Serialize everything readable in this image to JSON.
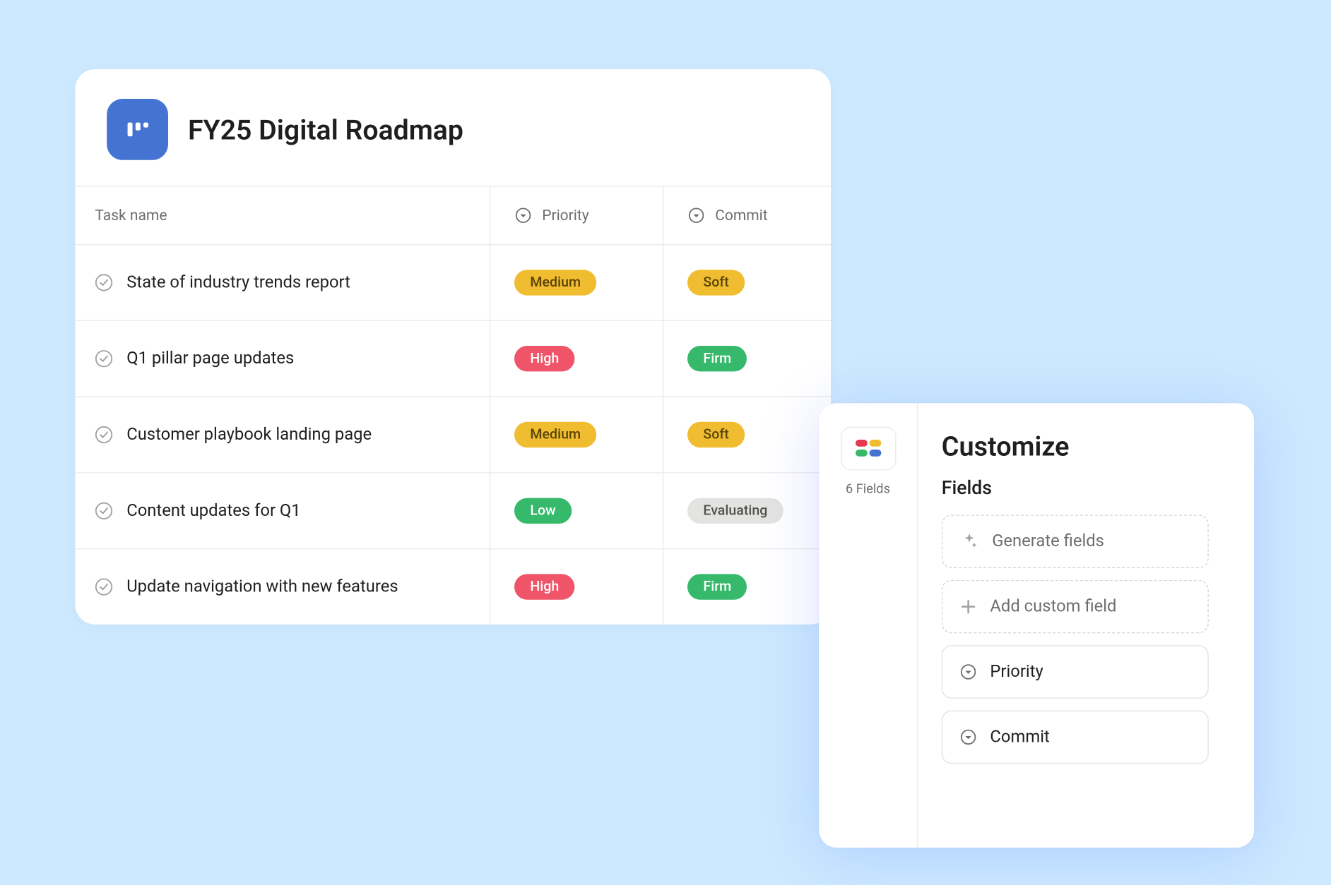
{
  "page_background": "#cce9ff",
  "project": {
    "icon_bg": "#4573d2",
    "title": "FY25 Digital Roadmap"
  },
  "columns": {
    "task_name": "Task name",
    "priority": "Priority",
    "commit": "Commit"
  },
  "pill_styles": {
    "Medium": {
      "bg": "#f1bd30",
      "fg": "#5a4305"
    },
    "High": {
      "bg": "#ef5468",
      "fg": "#ffffff"
    },
    "Low": {
      "bg": "#37b96c",
      "fg": "#ffffff"
    },
    "Soft": {
      "bg": "#f1bd30",
      "fg": "#5a4305"
    },
    "Firm": {
      "bg": "#37b96c",
      "fg": "#ffffff"
    },
    "Evaluating": {
      "bg": "#e3e3e1",
      "fg": "#53514f"
    }
  },
  "rows": [
    {
      "task": "State of industry trends report",
      "priority": "Medium",
      "commit": "Soft"
    },
    {
      "task": "Q1 pillar page updates",
      "priority": "High",
      "commit": "Firm"
    },
    {
      "task": "Customer playbook landing page",
      "priority": "Medium",
      "commit": "Soft"
    },
    {
      "task": "Content updates for Q1",
      "priority": "Low",
      "commit": "Evaluating"
    },
    {
      "task": "Update navigation with new features",
      "priority": "High",
      "commit": "Firm"
    }
  ],
  "customize": {
    "title": "Customize",
    "fields_heading": "Fields",
    "fields_count": "6 Fields",
    "generate_label": "Generate fields",
    "add_label": "Add custom field",
    "field_items": [
      {
        "label": "Priority"
      },
      {
        "label": "Commit"
      }
    ],
    "icon_colors": {
      "tl": "#e8384f",
      "tr": "#f1bd30",
      "bl": "#37b96c",
      "br": "#4573d2"
    }
  }
}
